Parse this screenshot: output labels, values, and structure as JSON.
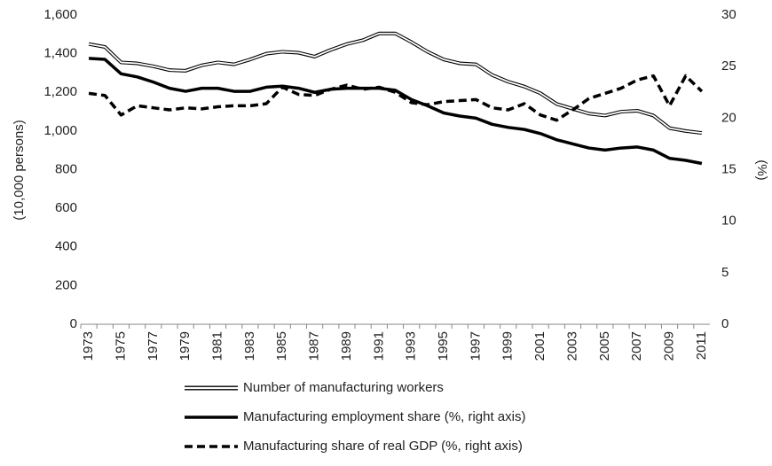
{
  "chart_data": {
    "type": "line",
    "categories": [
      "1973",
      null,
      "1975",
      null,
      "1977",
      null,
      "1979",
      null,
      "1981",
      null,
      "1983",
      null,
      "1985",
      null,
      "1987",
      null,
      "1989",
      null,
      "1991",
      null,
      "1993",
      null,
      "1995",
      null,
      "1997",
      null,
      "1999",
      null,
      "2001",
      null,
      "2003",
      null,
      "2005",
      null,
      "2007",
      null,
      "2009",
      null,
      "2011"
    ],
    "y_label": "(10,000 persons)",
    "y2_label": "(%)",
    "ylim": [
      0,
      1600
    ],
    "yticks": [
      0,
      200,
      400,
      600,
      800,
      {
        "value": 1000,
        "label": "1,000"
      },
      {
        "value": 1200,
        "label": "1,200"
      },
      {
        "value": 1400,
        "label": "1,400"
      },
      {
        "value": 1600,
        "label": "1,600"
      }
    ],
    "y2lim": [
      0,
      30
    ],
    "y2ticks": [
      0,
      5,
      10,
      15,
      20,
      25,
      30
    ],
    "grid": false,
    "legend": "bottom",
    "series": [
      {
        "name": "Number of manufacturing workers",
        "color": "#000000",
        "style": "double",
        "values": [
          1450,
          1435,
          1355,
          1350,
          1335,
          1315,
          1312,
          1340,
          1355,
          1345,
          1370,
          1400,
          1410,
          1405,
          1385,
          1420,
          1450,
          1470,
          1505,
          1505,
          1460,
          1410,
          1370,
          1350,
          1345,
          1290,
          1255,
          1230,
          1195,
          1140,
          1115,
          1090,
          1080,
          1100,
          1105,
          1080,
          1015,
          1000,
          990
        ]
      },
      {
        "name": "Manufacturing employment share (%, right axis)",
        "color": "#000000",
        "style": "solid",
        "axis": "y2",
        "values": [
          25.8,
          25.7,
          24.3,
          24.0,
          23.5,
          22.9,
          22.6,
          22.9,
          22.9,
          22.6,
          22.6,
          23.0,
          23.1,
          22.9,
          22.5,
          22.8,
          22.9,
          22.9,
          22.9,
          22.7,
          21.8,
          21.2,
          20.5,
          20.2,
          20.0,
          19.4,
          19.1,
          18.9,
          18.5,
          17.9,
          17.5,
          17.1,
          16.9,
          17.1,
          17.2,
          16.9,
          16.1,
          15.9,
          15.6
        ]
      },
      {
        "name": "Manufacturing share of real GDP (%, right axis)",
        "color": "#000000",
        "style": "dashed",
        "axis": "y2",
        "values": [
          22.4,
          22.2,
          20.3,
          21.2,
          21.0,
          20.8,
          21.0,
          20.9,
          21.1,
          21.2,
          21.2,
          21.4,
          23.0,
          22.3,
          22.2,
          22.8,
          23.2,
          22.8,
          23.0,
          22.5,
          21.5,
          21.3,
          21.6,
          21.7,
          21.8,
          21.0,
          20.8,
          21.4,
          20.3,
          19.8,
          20.8,
          21.9,
          22.4,
          22.9,
          23.7,
          24.1,
          21.2,
          24.1,
          22.6
        ]
      }
    ]
  }
}
